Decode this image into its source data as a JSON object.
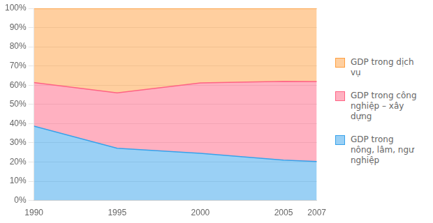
{
  "chart_data": {
    "type": "area",
    "stacked": true,
    "x": [
      1990,
      1995,
      2000,
      2005,
      2007
    ],
    "series": [
      {
        "name": "GDP trong\nnông, lâm, ngư\nnghiệp",
        "values": [
          38.7,
          27.2,
          24.5,
          21.0,
          20.3
        ]
      },
      {
        "name": "GDP trong công\nnghiệp – xây\ndựng",
        "values": [
          22.7,
          28.8,
          36.7,
          41.0,
          41.6
        ]
      },
      {
        "name": "GDP trong dịch\nvụ",
        "values": [
          38.6,
          44.0,
          38.8,
          38.0,
          38.1
        ]
      }
    ],
    "xlim": [
      1990,
      2007
    ],
    "xticks": [
      1990,
      1995,
      2000,
      2005,
      2007
    ],
    "ylim": [
      0,
      100
    ],
    "yticks": [
      {
        "value": 0,
        "label": "0%"
      },
      {
        "value": 10,
        "label": "10%"
      },
      {
        "value": 20,
        "label": "20%"
      },
      {
        "value": 30,
        "label": "30%"
      },
      {
        "value": 40,
        "label": "40%"
      },
      {
        "value": 50,
        "label": "50%"
      },
      {
        "value": 60,
        "label": "60%"
      },
      {
        "value": 70,
        "label": "70%"
      },
      {
        "value": 80,
        "label": "80%"
      },
      {
        "value": 90,
        "label": "90%"
      },
      {
        "value": 100,
        "label": "100%"
      }
    ],
    "grid": "y",
    "legend": "right"
  }
}
